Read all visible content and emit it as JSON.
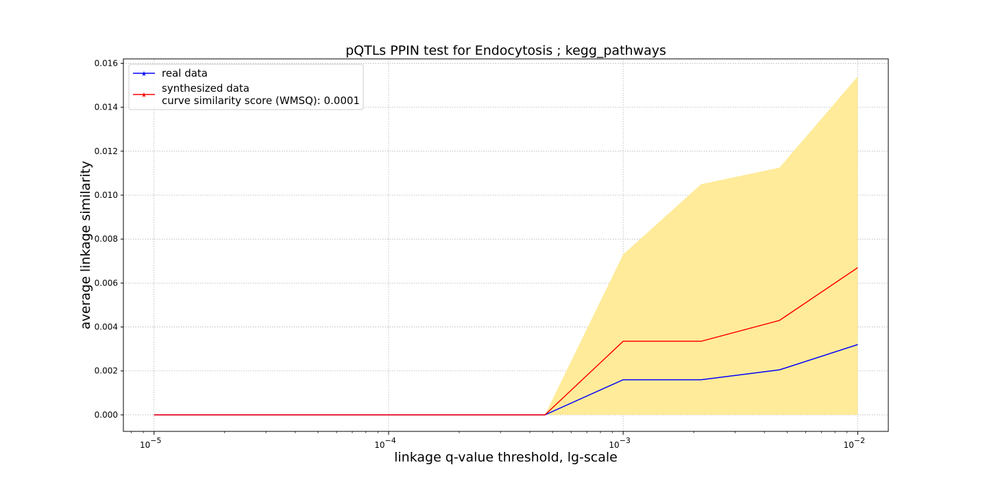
{
  "chart_data": {
    "type": "line",
    "title": "pQTLs PPIN test for Endocytosis ; kegg_pathways",
    "xlabel": "linkage q-value threshold, lg-scale",
    "ylabel": "average linkage similarity",
    "x_scale": "log",
    "xlim": [
      7.4e-06,
      0.0135
    ],
    "ylim": [
      -0.00075,
      0.0162
    ],
    "x_ticks": [
      {
        "value": 1e-05,
        "base": "10",
        "exp": "−5"
      },
      {
        "value": 0.0001,
        "base": "10",
        "exp": "−4"
      },
      {
        "value": 0.001,
        "base": "10",
        "exp": "−3"
      },
      {
        "value": 0.01,
        "base": "10",
        "exp": "−2"
      }
    ],
    "y_ticks": [
      {
        "value": 0.0,
        "label": "0.000"
      },
      {
        "value": 0.002,
        "label": "0.002"
      },
      {
        "value": 0.004,
        "label": "0.004"
      },
      {
        "value": 0.006,
        "label": "0.006"
      },
      {
        "value": 0.008,
        "label": "0.008"
      },
      {
        "value": 0.01,
        "label": "0.010"
      },
      {
        "value": 0.012,
        "label": "0.012"
      },
      {
        "value": 0.014,
        "label": "0.014"
      },
      {
        "value": 0.016,
        "label": "0.016"
      }
    ],
    "grid": true,
    "x": [
      1e-05,
      2.15e-05,
      4.64e-05,
      0.0001,
      0.000215,
      0.000464,
      0.001,
      0.00215,
      0.00464,
      0.01
    ],
    "series": [
      {
        "name": "real data",
        "color": "#0000ff",
        "values": [
          0,
          0,
          0,
          0,
          0,
          0,
          0.0016,
          0.0016,
          0.00205,
          0.0032
        ]
      },
      {
        "name": "synthesized data",
        "color": "#ff0000",
        "values": [
          0,
          0,
          0,
          0,
          0,
          0,
          0.00335,
          0.00335,
          0.0043,
          0.0067
        ]
      }
    ],
    "band": {
      "color": "#ffeb99",
      "lower": [
        0,
        0,
        0,
        0,
        0,
        0,
        0,
        0,
        0,
        0
      ],
      "upper": [
        0,
        0,
        0,
        0,
        0,
        0,
        0.0073,
        0.0105,
        0.01125,
        0.0154
      ]
    },
    "legend": {
      "position": "top-left",
      "entries": [
        {
          "label": "real data",
          "color": "#0000ff"
        },
        {
          "label": "synthesized data",
          "color": "#ff0000"
        }
      ],
      "extra_line": "curve similarity score (WMSQ): 0.0001"
    }
  }
}
